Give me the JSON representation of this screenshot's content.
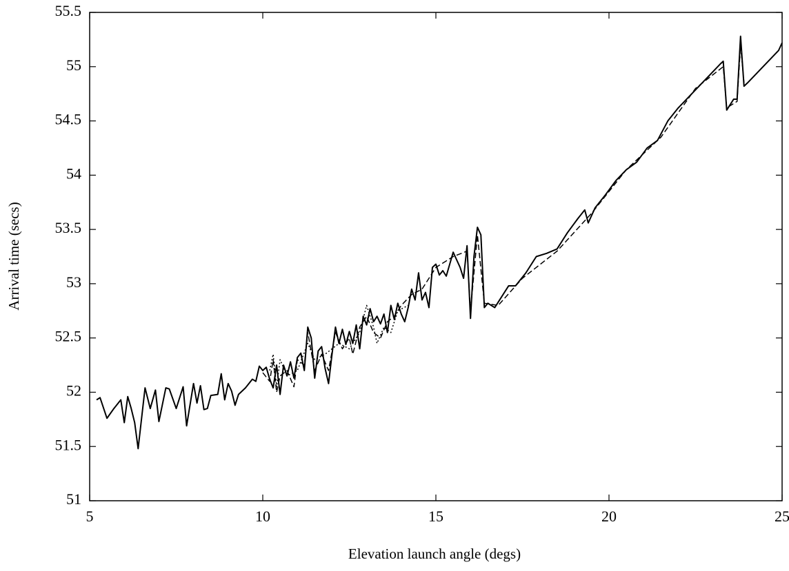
{
  "chart_data": {
    "type": "line",
    "xlabel": "Elevation launch angle (degs)",
    "ylabel": "Arrival time (secs)",
    "xlim": [
      5,
      25
    ],
    "ylim": [
      51,
      55.5
    ],
    "xticks": [
      5,
      10,
      15,
      20,
      25
    ],
    "yticks": [
      51,
      51.5,
      52,
      52.5,
      53,
      53.5,
      54,
      54.5,
      55,
      55.5
    ],
    "grid": false,
    "series": [
      {
        "color": "#000000",
        "linestyle": "solid",
        "x": [
          5.2,
          5.3,
          5.5,
          5.7,
          5.9,
          6.0,
          6.1,
          6.2,
          6.3,
          6.4,
          6.6,
          6.75,
          6.9,
          7.0,
          7.2,
          7.3,
          7.5,
          7.7,
          7.8,
          8.0,
          8.1,
          8.2,
          8.3,
          8.4,
          8.5,
          8.7,
          8.8,
          8.9,
          9.0,
          9.1,
          9.2,
          9.3,
          9.5,
          9.7,
          9.8,
          9.9,
          10.0,
          10.1,
          10.2,
          10.3,
          10.4,
          10.5,
          10.6,
          10.7,
          10.8,
          10.9,
          11.0,
          11.1,
          11.2,
          11.3,
          11.4,
          11.5,
          11.6,
          11.7,
          11.8,
          11.9,
          12.0,
          12.1,
          12.2,
          12.3,
          12.4,
          12.5,
          12.6,
          12.7,
          12.8,
          12.9,
          13.0,
          13.1,
          13.2,
          13.3,
          13.4,
          13.5,
          13.6,
          13.7,
          13.8,
          13.9,
          14.0,
          14.1,
          14.2,
          14.3,
          14.4,
          14.5,
          14.6,
          14.7,
          14.8,
          14.9,
          15.0,
          15.1,
          15.2,
          15.3,
          15.4,
          15.5,
          15.6,
          15.7,
          15.8,
          15.9,
          16.0,
          16.1,
          16.2,
          16.3,
          16.4,
          16.5,
          16.7,
          16.9,
          17.1,
          17.3,
          17.6,
          17.9,
          18.2,
          18.5,
          18.8,
          19.1,
          19.3,
          19.4,
          19.6,
          19.9,
          20.2,
          20.5,
          20.8,
          21.1,
          21.4,
          21.7,
          22.0,
          22.3,
          22.6,
          22.9,
          23.2,
          23.3,
          23.4,
          23.5,
          23.6,
          23.7,
          23.8,
          23.9,
          24.0,
          24.3,
          24.6,
          24.9,
          25.0
        ],
        "values": [
          51.93,
          51.95,
          51.76,
          51.85,
          51.93,
          51.72,
          51.96,
          51.85,
          51.72,
          51.48,
          52.04,
          51.85,
          52.02,
          51.73,
          52.04,
          52.03,
          51.85,
          52.05,
          51.69,
          52.08,
          51.9,
          52.06,
          51.84,
          51.85,
          51.97,
          51.98,
          52.17,
          51.93,
          52.08,
          52.01,
          51.88,
          51.98,
          52.04,
          52.12,
          52.1,
          52.24,
          52.2,
          52.23,
          52.12,
          52.04,
          52.25,
          51.98,
          52.25,
          52.15,
          52.28,
          52.13,
          52.32,
          52.36,
          52.2,
          52.6,
          52.5,
          52.13,
          52.38,
          52.42,
          52.22,
          52.08,
          52.35,
          52.6,
          52.45,
          52.58,
          52.44,
          52.56,
          52.45,
          52.62,
          52.4,
          52.7,
          52.62,
          52.77,
          52.65,
          52.7,
          52.63,
          52.72,
          52.55,
          52.8,
          52.67,
          52.82,
          52.72,
          52.65,
          52.78,
          52.95,
          52.85,
          53.1,
          52.85,
          52.92,
          52.78,
          53.15,
          53.18,
          53.08,
          53.12,
          53.07,
          53.18,
          53.29,
          53.22,
          53.15,
          53.05,
          53.35,
          52.68,
          53.25,
          53.52,
          53.45,
          52.78,
          52.82,
          52.78,
          52.88,
          52.98,
          52.98,
          53.1,
          53.25,
          53.28,
          53.32,
          53.47,
          53.6,
          53.68,
          53.56,
          53.7,
          53.82,
          53.95,
          54.05,
          54.12,
          54.25,
          54.32,
          54.5,
          54.62,
          54.72,
          54.82,
          54.92,
          55.02,
          55.05,
          54.6,
          54.65,
          54.7,
          54.7,
          55.28,
          54.82,
          54.85,
          54.95,
          55.05,
          55.15,
          55.22
        ]
      },
      {
        "color": "#000000",
        "linestyle": "dashed",
        "x": [
          10.0,
          10.2,
          10.3,
          10.4,
          10.5,
          10.7,
          10.9,
          11.0,
          11.2,
          11.3,
          11.5,
          11.7,
          11.9,
          12.1,
          12.3,
          12.5,
          12.6,
          12.8,
          13.0,
          13.2,
          13.4,
          13.6,
          13.8,
          14.0,
          14.3,
          14.6,
          15.0,
          15.5,
          15.9,
          16.0,
          16.2,
          16.4,
          16.8,
          17.5,
          18.5,
          19.5,
          20.5,
          21.5,
          22.5,
          23.3,
          23.4,
          23.7,
          23.8,
          23.9
        ],
        "values": [
          52.18,
          52.1,
          52.3,
          52.0,
          52.15,
          52.2,
          52.05,
          52.3,
          52.25,
          52.55,
          52.2,
          52.35,
          52.2,
          52.55,
          52.4,
          52.5,
          52.35,
          52.6,
          52.7,
          52.55,
          52.5,
          52.65,
          52.7,
          52.8,
          52.9,
          52.95,
          53.15,
          53.25,
          53.3,
          52.75,
          53.45,
          52.82,
          52.8,
          53.05,
          53.3,
          53.65,
          54.05,
          54.35,
          54.8,
          55.0,
          54.62,
          54.68,
          55.2,
          54.85
        ]
      },
      {
        "color": "#000000",
        "linestyle": "dotted",
        "x": [
          10.2,
          10.3,
          10.4,
          10.5,
          10.7,
          11.0,
          11.3,
          11.5,
          11.8,
          12.2,
          12.5,
          12.8,
          13.0,
          13.2,
          13.3,
          13.5,
          13.7,
          13.9,
          14.2
        ],
        "values": [
          52.2,
          52.35,
          52.05,
          52.3,
          52.15,
          52.2,
          52.45,
          52.3,
          52.35,
          52.45,
          52.4,
          52.55,
          52.8,
          52.6,
          52.45,
          52.6,
          52.55,
          52.75,
          52.8
        ]
      }
    ]
  }
}
